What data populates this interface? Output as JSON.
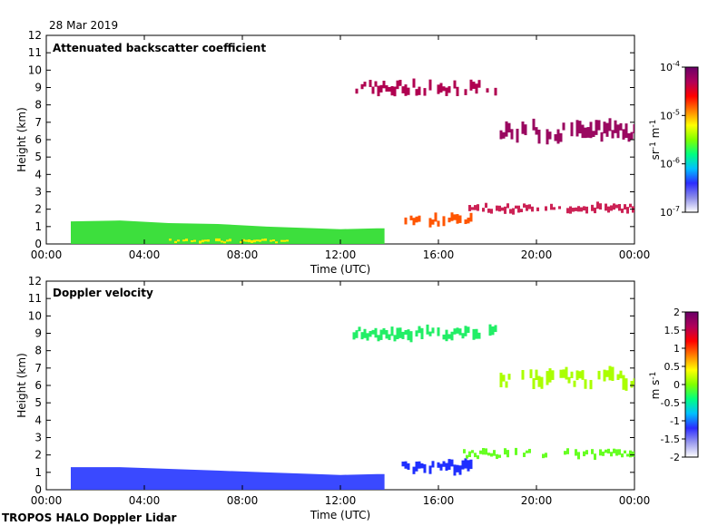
{
  "date_label": "28 Mar 2019",
  "footer_label": "TROPOS HALO Doppler Lidar",
  "chart_data": [
    {
      "type": "heatmap",
      "title": "Attenuated backscatter coefficient",
      "xlabel": "Time (UTC)",
      "ylabel": "Height (km)",
      "xlim": [
        0,
        24
      ],
      "ylim": [
        0,
        12
      ],
      "x_ticks": [
        0,
        4,
        8,
        12,
        16,
        20,
        24
      ],
      "x_tick_labels": [
        "00:00",
        "04:00",
        "08:00",
        "12:00",
        "16:00",
        "20:00",
        "00:00"
      ],
      "y_ticks": [
        0,
        1,
        2,
        3,
        4,
        5,
        6,
        7,
        8,
        9,
        10,
        11,
        12
      ],
      "y_tick_labels": [
        "0",
        "1",
        "2",
        "3",
        "4",
        "5",
        "6",
        "7",
        "8",
        "9",
        "10",
        "11",
        "12"
      ],
      "colorbar": {
        "scale": "log",
        "range": [
          1e-07,
          0.0001
        ],
        "ticks": [
          -7,
          -6,
          -5,
          -4
        ],
        "tick_base": "10",
        "unit_label": "sr",
        "unit_label_2": "m",
        "unit_exponent": "-1",
        "colormap": [
          "#ffffff",
          "#8d8de8",
          "#2c2cff",
          "#00c0ff",
          "#00ff80",
          "#80ff00",
          "#ffff00",
          "#ff8000",
          "#ff0000",
          "#b0005a",
          "#6a0068"
        ]
      },
      "features": [
        {
          "name": "boundary layer",
          "t_start": 1.0,
          "t_end": 13.8,
          "h_bottom": 0.0,
          "h_top_profile": [
            [
              1,
              1.3
            ],
            [
              3,
              1.35
            ],
            [
              5,
              1.2
            ],
            [
              7,
              1.15
            ],
            [
              9,
              1.0
            ],
            [
              11,
              0.9
            ],
            [
              12,
              0.85
            ],
            [
              13.5,
              0.9
            ]
          ],
          "color": "#33dd33",
          "value": 2e-06
        },
        {
          "name": "surface layer",
          "t_start": 5.0,
          "t_end": 10.0,
          "h_bottom": 0.0,
          "h_top": 0.35,
          "color": "#ffee00",
          "value": 6e-06
        },
        {
          "name": "residual layer",
          "t_start": 14.5,
          "t_end": 17.5,
          "h_bottom": 0.8,
          "h_top": 2.0,
          "color": "#ff5500",
          "value": 1.5e-05
        },
        {
          "name": "cloud 2 km",
          "t_start": 17.0,
          "t_end": 24.0,
          "h_bottom": 1.6,
          "h_top": 2.5,
          "color": "#cc2255",
          "value": 4e-05
        },
        {
          "name": "cirrus",
          "t_start": 18.5,
          "t_end": 24.0,
          "h_bottom": 5.5,
          "h_top": 7.5,
          "color": "#9a0860",
          "value": 6e-05
        },
        {
          "name": "high cloud fragments",
          "t_start": 12.5,
          "t_end": 18.5,
          "h_bottom": 8.3,
          "h_top": 9.7,
          "color": "#b00050",
          "value": 5e-05
        }
      ]
    },
    {
      "type": "heatmap",
      "title": "Doppler velocity",
      "xlabel": "Time (UTC)",
      "ylabel": "Height (km)",
      "xlim": [
        0,
        24
      ],
      "ylim": [
        0,
        12
      ],
      "x_ticks": [
        0,
        4,
        8,
        12,
        16,
        20,
        24
      ],
      "x_tick_labels": [
        "00:00",
        "04:00",
        "08:00",
        "12:00",
        "16:00",
        "20:00",
        "00:00"
      ],
      "y_ticks": [
        0,
        1,
        2,
        3,
        4,
        5,
        6,
        7,
        8,
        9,
        10,
        11,
        12
      ],
      "y_tick_labels": [
        "0",
        "1",
        "2",
        "3",
        "4",
        "5",
        "6",
        "7",
        "8",
        "9",
        "10",
        "11",
        "12"
      ],
      "colorbar": {
        "scale": "linear",
        "range": [
          -2,
          2
        ],
        "ticks": [
          -2,
          -1.5,
          -1,
          -0.5,
          0,
          0.5,
          1,
          1.5,
          2
        ],
        "tick_labels": [
          "-2",
          "-1.5",
          "-1",
          "-0.5",
          "0",
          "0.5",
          "1",
          "1.5",
          "2"
        ],
        "unit_label": "m s",
        "unit_exponent": "-1",
        "colormap": [
          "#ffffff",
          "#9a9aee",
          "#2c2cff",
          "#00c0ff",
          "#00ff80",
          "#80ff00",
          "#ffff00",
          "#ff8000",
          "#ff0000",
          "#b0005a",
          "#6a0068"
        ]
      },
      "features": [
        {
          "name": "boundary layer",
          "t_start": 1.0,
          "t_end": 13.8,
          "h_bottom": 0.0,
          "h_top_profile": [
            [
              1,
              1.3
            ],
            [
              3,
              1.3
            ],
            [
              5,
              1.2
            ],
            [
              7,
              1.1
            ],
            [
              9,
              1.0
            ],
            [
              11,
              0.9
            ],
            [
              12,
              0.85
            ],
            [
              13.5,
              0.9
            ]
          ],
          "color": "#2f3fff",
          "value": -1.2
        },
        {
          "name": "residual layer",
          "t_start": 14.5,
          "t_end": 17.5,
          "h_bottom": 0.6,
          "h_top": 2.0,
          "color": "#1f2fff",
          "value": -1.3
        },
        {
          "name": "cloud 2 km",
          "t_start": 17.0,
          "t_end": 24.0,
          "h_bottom": 1.6,
          "h_top": 2.5,
          "color": "#66ff22",
          "value": 0.2
        },
        {
          "name": "cirrus",
          "t_start": 18.5,
          "t_end": 24.0,
          "h_bottom": 5.5,
          "h_top": 7.3,
          "color": "#aaff00",
          "value": 0.3
        },
        {
          "name": "high cloud fragments",
          "t_start": 12.5,
          "t_end": 18.5,
          "h_bottom": 8.3,
          "h_top": 9.7,
          "color": "#22ee66",
          "value": 0.0
        }
      ]
    }
  ]
}
